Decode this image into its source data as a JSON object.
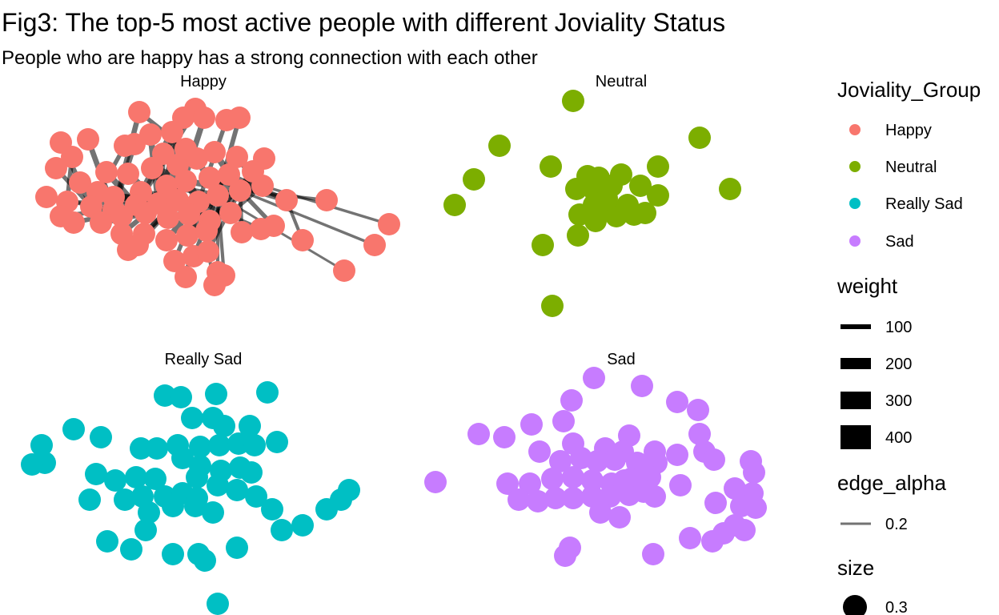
{
  "title": "Fig3: The top-5 most active people with different Joviality Status",
  "subtitle": "People who are happy has a strong connection with each other",
  "chart_data": {
    "type": "network",
    "facets": [
      "Happy",
      "Neutral",
      "Really Sad",
      "Sad"
    ],
    "edge_color": "#000000",
    "legends": [
      {
        "title": "Joviality_Group",
        "kind": "color",
        "items": [
          {
            "label": "Happy",
            "color": "#F8766D"
          },
          {
            "label": "Neutral",
            "color": "#7CAE00"
          },
          {
            "label": "Really Sad",
            "color": "#00BFC4"
          },
          {
            "label": "Sad",
            "color": "#C77CFF"
          }
        ]
      },
      {
        "title": "weight",
        "kind": "width",
        "items": [
          {
            "label": "100",
            "value": 100
          },
          {
            "label": "200",
            "value": 200
          },
          {
            "label": "300",
            "value": 300
          },
          {
            "label": "400",
            "value": 400
          }
        ]
      },
      {
        "title": "edge_alpha",
        "kind": "line",
        "items": [
          {
            "label": "0.2",
            "value": 0.2
          }
        ]
      },
      {
        "title": "size",
        "kind": "size",
        "items": [
          {
            "label": "0.3",
            "value": 0.3
          }
        ]
      }
    ]
  }
}
